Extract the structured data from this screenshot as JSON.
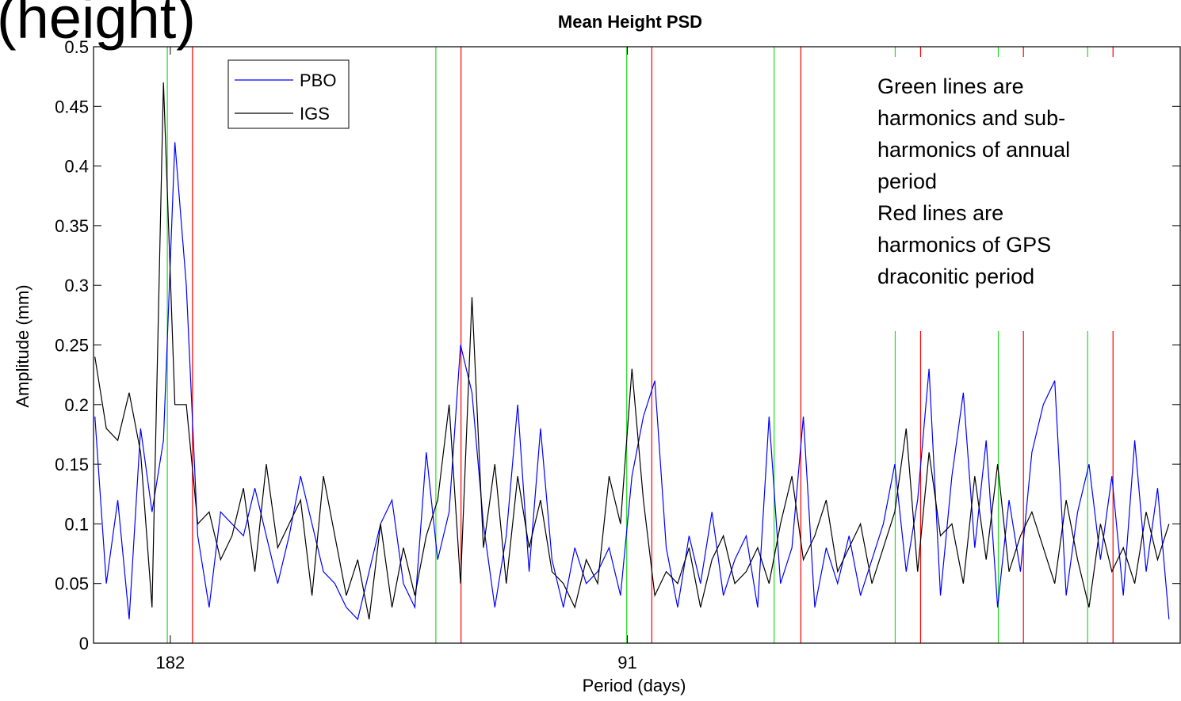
{
  "slide_title": "(height)",
  "chart_data": {
    "type": "line",
    "title": "Mean Height PSD",
    "xlabel": "Period (days)",
    "ylabel": "Amplitude (mm)",
    "xlim": [
      1.664,
      6.419
    ],
    "xticks": [
      {
        "value": 2,
        "label": "182"
      },
      {
        "value": 4,
        "label": "91"
      }
    ],
    "ylim": [
      0,
      0.5
    ],
    "yticks": [
      0,
      0.05,
      0.1,
      0.15,
      0.2,
      0.25,
      0.3,
      0.35,
      0.4,
      0.45,
      0.5
    ],
    "legend": "upper left",
    "x": [
      1.67,
      1.72,
      1.77,
      1.82,
      1.87,
      1.92,
      1.97,
      2.02,
      2.07,
      2.12,
      2.17,
      2.22,
      2.27,
      2.32,
      2.37,
      2.42,
      2.47,
      2.52,
      2.57,
      2.62,
      2.67,
      2.72,
      2.77,
      2.82,
      2.87,
      2.92,
      2.97,
      3.02,
      3.07,
      3.12,
      3.17,
      3.22,
      3.27,
      3.32,
      3.37,
      3.42,
      3.47,
      3.52,
      3.57,
      3.62,
      3.67,
      3.72,
      3.77,
      3.82,
      3.87,
      3.92,
      3.97,
      4.02,
      4.07,
      4.12,
      4.17,
      4.22,
      4.27,
      4.32,
      4.37,
      4.42,
      4.47,
      4.52,
      4.57,
      4.62,
      4.67,
      4.72,
      4.77,
      4.82,
      4.87,
      4.92,
      4.97,
      5.02,
      5.07,
      5.12,
      5.17,
      5.22,
      5.27,
      5.32,
      5.37,
      5.42,
      5.47,
      5.52,
      5.57,
      5.62,
      5.67,
      5.72,
      5.77,
      5.82,
      5.87,
      5.92,
      5.97,
      6.02,
      6.07,
      6.12,
      6.17,
      6.22,
      6.27,
      6.32,
      6.37
    ],
    "series": [
      {
        "name": "PBO",
        "color": "#0000ff",
        "values": [
          0.19,
          0.05,
          0.12,
          0.02,
          0.18,
          0.11,
          0.17,
          0.42,
          0.3,
          0.09,
          0.03,
          0.11,
          0.1,
          0.09,
          0.13,
          0.09,
          0.05,
          0.09,
          0.14,
          0.1,
          0.06,
          0.05,
          0.03,
          0.02,
          0.06,
          0.1,
          0.12,
          0.05,
          0.03,
          0.16,
          0.07,
          0.11,
          0.25,
          0.21,
          0.1,
          0.03,
          0.09,
          0.2,
          0.06,
          0.18,
          0.07,
          0.03,
          0.08,
          0.05,
          0.06,
          0.08,
          0.04,
          0.14,
          0.19,
          0.22,
          0.08,
          0.03,
          0.09,
          0.05,
          0.11,
          0.04,
          0.07,
          0.09,
          0.03,
          0.19,
          0.05,
          0.08,
          0.19,
          0.03,
          0.08,
          0.05,
          0.09,
          0.04,
          0.07,
          0.1,
          0.15,
          0.06,
          0.12,
          0.23,
          0.04,
          0.14,
          0.21,
          0.08,
          0.17,
          0.03,
          0.12,
          0.06,
          0.16,
          0.2,
          0.22,
          0.04,
          0.11,
          0.15,
          0.07,
          0.14,
          0.04,
          0.17,
          0.06,
          0.13,
          0.02
        ]
      },
      {
        "name": "IGS",
        "color": "#000000",
        "values": [
          0.24,
          0.18,
          0.17,
          0.21,
          0.16,
          0.03,
          0.47,
          0.2,
          0.2,
          0.1,
          0.11,
          0.07,
          0.09,
          0.13,
          0.06,
          0.15,
          0.08,
          0.1,
          0.12,
          0.04,
          0.14,
          0.09,
          0.04,
          0.07,
          0.02,
          0.1,
          0.03,
          0.08,
          0.04,
          0.09,
          0.12,
          0.2,
          0.05,
          0.29,
          0.08,
          0.15,
          0.05,
          0.14,
          0.08,
          0.12,
          0.06,
          0.05,
          0.03,
          0.07,
          0.05,
          0.14,
          0.1,
          0.23,
          0.12,
          0.04,
          0.06,
          0.05,
          0.08,
          0.03,
          0.07,
          0.09,
          0.05,
          0.06,
          0.08,
          0.05,
          0.1,
          0.14,
          0.07,
          0.09,
          0.12,
          0.06,
          0.08,
          0.1,
          0.05,
          0.08,
          0.11,
          0.18,
          0.06,
          0.16,
          0.09,
          0.1,
          0.05,
          0.14,
          0.07,
          0.15,
          0.06,
          0.09,
          0.11,
          0.08,
          0.05,
          0.12,
          0.07,
          0.03,
          0.1,
          0.06,
          0.08,
          0.05,
          0.11,
          0.07,
          0.1
        ]
      }
    ],
    "annual_harmonics": {
      "color": "#22dd22",
      "x": [
        1.987,
        3.162,
        3.997,
        4.642,
        5.172,
        5.623,
        6.014
      ]
    },
    "draconitic_harmonics": {
      "color": "#ff0000",
      "x": [
        2.097,
        3.272,
        4.107,
        4.759,
        5.283,
        5.733,
        6.125
      ]
    },
    "annotation_lines": [
      "Green lines are",
      "harmonics and sub-",
      "harmonics of annual",
      "period",
      "Red lines are",
      "harmonics of GPS",
      "draconitic period"
    ]
  }
}
